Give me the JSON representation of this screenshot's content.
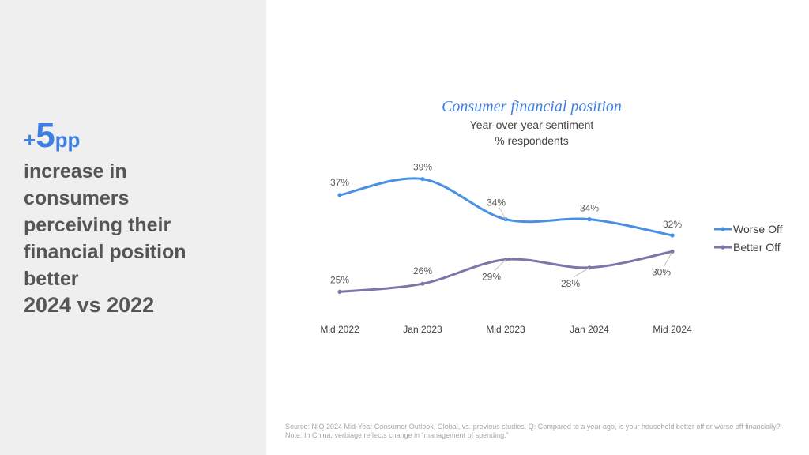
{
  "left_panel": {
    "kpi_plus": "+",
    "kpi_value": "5",
    "kpi_unit": "pp",
    "description": "increase in consumers perceiving their financial position better",
    "years": "2024 vs 2022"
  },
  "colors": {
    "worse_off": "#4a90e2",
    "better_off": "#7b77a8",
    "title": "#3f7fe4",
    "panel_bg": "#efefef"
  },
  "chart_data": {
    "type": "line",
    "title": "Consumer financial position",
    "subtitle_line1": "Year-over-year sentiment",
    "subtitle_line2": "% respondents",
    "categories": [
      "Mid 2022",
      "Jan 2023",
      "Mid 2023",
      "Jan 2024",
      "Mid 2024"
    ],
    "series": [
      {
        "name": "Worse Off",
        "values": [
          37,
          39,
          34,
          34,
          32
        ],
        "labels": [
          "37%",
          "39%",
          "34%",
          "34%",
          "32%"
        ]
      },
      {
        "name": "Better Off",
        "values": [
          25,
          26,
          29,
          28,
          30
        ],
        "labels": [
          "25%",
          "26%",
          "29%",
          "28%",
          "30%"
        ]
      }
    ],
    "ylim": [
      22,
      42
    ],
    "legend": "right",
    "grid": false
  },
  "source": "Source: NIQ 2024 Mid-Year Consumer Outlook, Global, vs. previous studies. Q: Compared to a year ago, is your household better off or worse off financially? Note: In China, verbiage reflects change in “management of spending.”"
}
